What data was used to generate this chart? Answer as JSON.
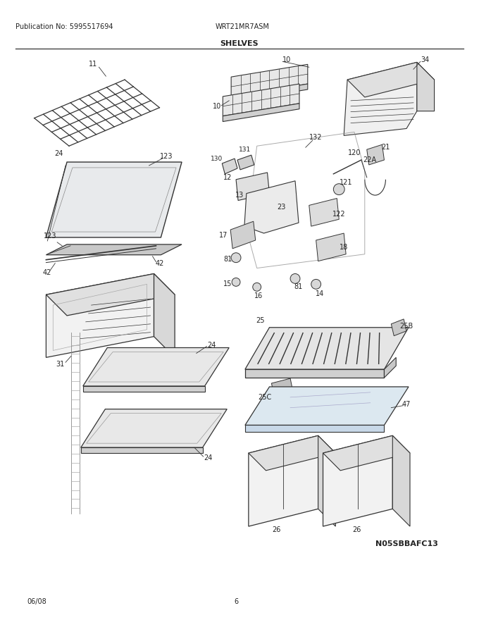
{
  "title": "SHELVES",
  "publication": "Publication No: 5995517694",
  "model": "WRT21MR7ASM",
  "date": "06/08",
  "page": "6",
  "catalog_num": "N05SBBAFC13",
  "bg_color": "#ffffff",
  "text_color": "#222222",
  "line_color": "#333333",
  "fig_width": 6.8,
  "fig_height": 8.8,
  "dpi": 100
}
